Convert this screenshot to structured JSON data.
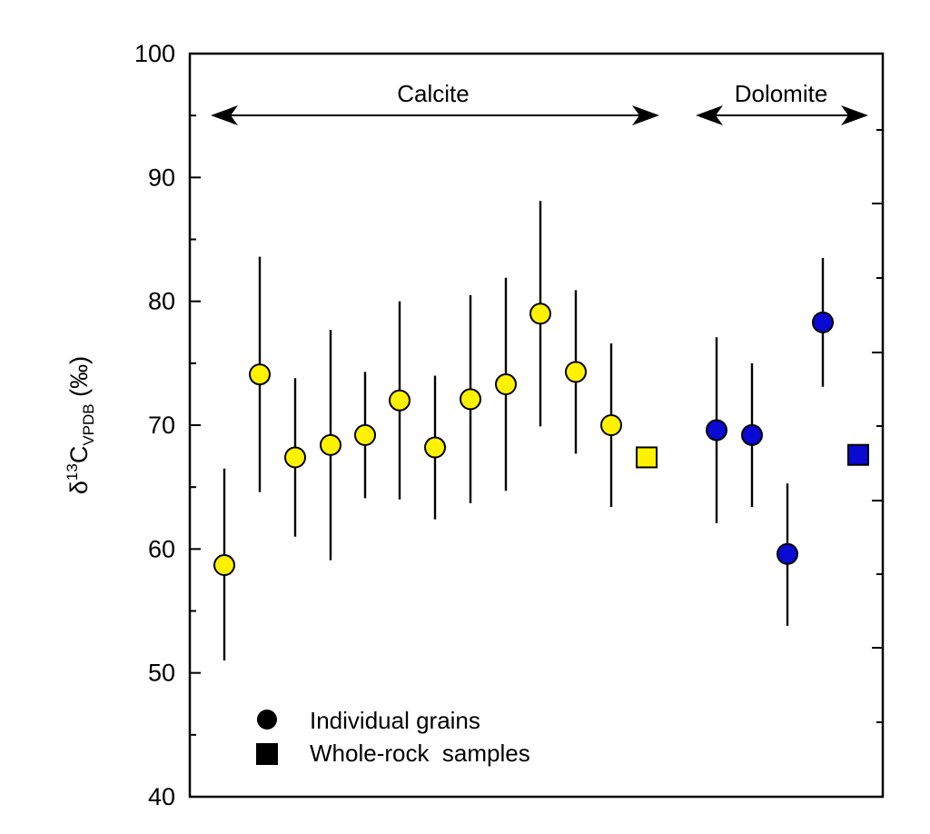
{
  "chart_data": {
    "type": "scatter",
    "title": "",
    "xlabel": "",
    "ylabel": {
      "prefix": "δ",
      "superscript": "13",
      "main": "C",
      "subscript": "VPDB",
      "suffix": " (‰)"
    },
    "ylim": [
      40,
      100
    ],
    "yticks": [
      "40",
      "50",
      "60",
      "70",
      "80",
      "90",
      "100"
    ],
    "grid": false,
    "series": [
      {
        "name": "Calcite",
        "color": "#FFF200",
        "marker": "circle",
        "points": [
          {
            "y": 58.7,
            "low": 51.0,
            "high": 66.5
          },
          {
            "y": 74.1,
            "low": 64.6,
            "high": 83.6
          },
          {
            "y": 67.4,
            "low": 61.0,
            "high": 73.8
          },
          {
            "y": 68.4,
            "low": 59.1,
            "high": 77.7
          },
          {
            "y": 69.2,
            "low": 64.1,
            "high": 74.3
          },
          {
            "y": 72.0,
            "low": 64.0,
            "high": 80.0
          },
          {
            "y": 68.2,
            "low": 62.4,
            "high": 74.0
          },
          {
            "y": 72.1,
            "low": 63.7,
            "high": 80.5
          },
          {
            "y": 73.3,
            "low": 64.7,
            "high": 81.9
          },
          {
            "y": 79.0,
            "low": 69.9,
            "high": 88.1
          },
          {
            "y": 74.3,
            "low": 67.7,
            "high": 80.9
          },
          {
            "y": 70.0,
            "low": 63.4,
            "high": 76.6
          }
        ],
        "whole_rock": {
          "y": 67.4
        }
      },
      {
        "name": "Dolomite",
        "color": "#0A0AD2",
        "marker": "circle",
        "points": [
          {
            "y": 69.6,
            "low": 62.1,
            "high": 77.1
          },
          {
            "y": 69.2,
            "low": 63.4,
            "high": 75.0
          },
          {
            "y": 59.6,
            "low": 53.8,
            "high": 65.3
          },
          {
            "y": 78.3,
            "low": 73.1,
            "high": 83.5
          }
        ],
        "whole_rock": {
          "y": 67.6
        }
      }
    ],
    "annotations": {
      "calcite": "Calcite",
      "dolomite": "Dolomite"
    },
    "legend": {
      "placement": "bottom-left",
      "items": [
        {
          "label": "Individual grains",
          "marker": "circle"
        },
        {
          "label": "Whole-rock  samples",
          "marker": "square"
        }
      ]
    }
  }
}
